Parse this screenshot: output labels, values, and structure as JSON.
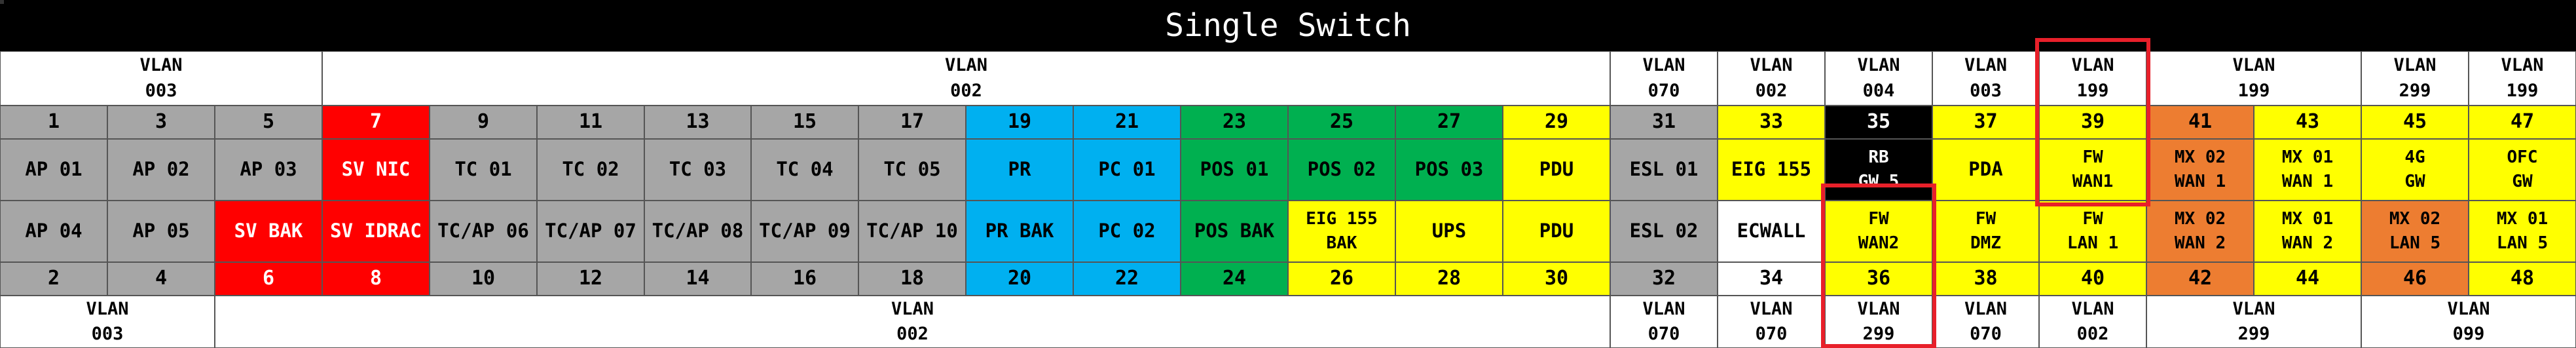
{
  "title": "Single Switch",
  "colors": {
    "grey": "#a6a6a6",
    "red": "#ff0000",
    "blue": "#00b0f0",
    "green": "#00b050",
    "yellow": "#ffff00",
    "orange": "#ed7d31",
    "black": "#000000",
    "white": "#ffffff",
    "highlight": "#e8202a"
  },
  "top_vlans": [
    {
      "text": "VLAN\n003",
      "span": 3
    },
    {
      "text": "VLAN\n002",
      "span": 12
    },
    {
      "text": "VLAN\n070",
      "span": 1
    },
    {
      "text": "VLAN\n002",
      "span": 1
    },
    {
      "text": "VLAN\n004",
      "span": 1
    },
    {
      "text": "VLAN\n003",
      "span": 1
    },
    {
      "text": "VLAN\n199",
      "span": 1
    },
    {
      "text": "VLAN\n199",
      "span": 2
    },
    {
      "text": "VLAN\n299",
      "span": 1
    },
    {
      "text": "VLAN\n199",
      "span": 1
    }
  ],
  "odd_ports": [
    {
      "num": "1",
      "color": "grey"
    },
    {
      "num": "3",
      "color": "grey"
    },
    {
      "num": "5",
      "color": "grey"
    },
    {
      "num": "7",
      "color": "red"
    },
    {
      "num": "9",
      "color": "grey"
    },
    {
      "num": "11",
      "color": "grey"
    },
    {
      "num": "13",
      "color": "grey"
    },
    {
      "num": "15",
      "color": "grey"
    },
    {
      "num": "17",
      "color": "grey"
    },
    {
      "num": "19",
      "color": "blue"
    },
    {
      "num": "21",
      "color": "blue"
    },
    {
      "num": "23",
      "color": "green"
    },
    {
      "num": "25",
      "color": "green"
    },
    {
      "num": "27",
      "color": "green"
    },
    {
      "num": "29",
      "color": "yellow"
    },
    {
      "num": "31",
      "color": "grey"
    },
    {
      "num": "33",
      "color": "yellow"
    },
    {
      "num": "35",
      "color": "black"
    },
    {
      "num": "37",
      "color": "yellow"
    },
    {
      "num": "39",
      "color": "yellow"
    },
    {
      "num": "41",
      "color": "orange"
    },
    {
      "num": "43",
      "color": "yellow"
    },
    {
      "num": "45",
      "color": "yellow"
    },
    {
      "num": "47",
      "color": "yellow"
    }
  ],
  "odd_labels": [
    {
      "text": "AP 01",
      "color": "grey"
    },
    {
      "text": "AP 02",
      "color": "grey"
    },
    {
      "text": "AP 03",
      "color": "grey"
    },
    {
      "text": "SV NIC",
      "color": "red"
    },
    {
      "text": "TC 01",
      "color": "grey"
    },
    {
      "text": "TC 02",
      "color": "grey"
    },
    {
      "text": "TC 03",
      "color": "grey"
    },
    {
      "text": "TC 04",
      "color": "grey"
    },
    {
      "text": "TC 05",
      "color": "grey"
    },
    {
      "text": "PR",
      "color": "blue"
    },
    {
      "text": "PC 01",
      "color": "blue"
    },
    {
      "text": "POS 01",
      "color": "green"
    },
    {
      "text": "POS 02",
      "color": "green"
    },
    {
      "text": "POS 03",
      "color": "green"
    },
    {
      "text": "PDU",
      "color": "yellow"
    },
    {
      "text": "ESL 01",
      "color": "grey"
    },
    {
      "text": "EIG 155",
      "color": "yellow"
    },
    {
      "text": "RB\nGW 5",
      "color": "black"
    },
    {
      "text": "PDA",
      "color": "yellow"
    },
    {
      "text": "FW\nWAN1",
      "color": "yellow"
    },
    {
      "text": "MX 02\nWAN 1",
      "color": "orange"
    },
    {
      "text": "MX 01\nWAN 1",
      "color": "yellow"
    },
    {
      "text": "4G\nGW",
      "color": "yellow"
    },
    {
      "text": "OFC\nGW",
      "color": "yellow"
    }
  ],
  "even_labels": [
    {
      "text": "AP 04",
      "color": "grey"
    },
    {
      "text": "AP 05",
      "color": "grey"
    },
    {
      "text": "SV BAK",
      "color": "red"
    },
    {
      "text": "SV IDRAC",
      "color": "red"
    },
    {
      "text": "TC/AP 06",
      "color": "grey"
    },
    {
      "text": "TC/AP 07",
      "color": "grey"
    },
    {
      "text": "TC/AP 08",
      "color": "grey"
    },
    {
      "text": "TC/AP 09",
      "color": "grey"
    },
    {
      "text": "TC/AP 10",
      "color": "grey"
    },
    {
      "text": "PR BAK",
      "color": "blue"
    },
    {
      "text": "PC 02",
      "color": "blue"
    },
    {
      "text": "POS BAK",
      "color": "green"
    },
    {
      "text": "EIG 155\nBAK",
      "color": "yellow"
    },
    {
      "text": "UPS",
      "color": "yellow"
    },
    {
      "text": "PDU",
      "color": "yellow"
    },
    {
      "text": "ESL 02",
      "color": "grey"
    },
    {
      "text": "ECWALL",
      "color": "white"
    },
    {
      "text": "FW\nWAN2",
      "color": "yellow"
    },
    {
      "text": "FW\nDMZ",
      "color": "yellow"
    },
    {
      "text": "FW\nLAN 1",
      "color": "yellow"
    },
    {
      "text": "MX 02\nWAN 2",
      "color": "orange"
    },
    {
      "text": "MX 01\nWAN 2",
      "color": "yellow"
    },
    {
      "text": "MX 02\nLAN 5",
      "color": "orange"
    },
    {
      "text": "MX 01\nLAN 5",
      "color": "yellow"
    }
  ],
  "even_ports": [
    {
      "num": "2",
      "color": "grey"
    },
    {
      "num": "4",
      "color": "grey"
    },
    {
      "num": "6",
      "color": "red"
    },
    {
      "num": "8",
      "color": "red"
    },
    {
      "num": "10",
      "color": "grey"
    },
    {
      "num": "12",
      "color": "grey"
    },
    {
      "num": "14",
      "color": "grey"
    },
    {
      "num": "16",
      "color": "grey"
    },
    {
      "num": "18",
      "color": "grey"
    },
    {
      "num": "20",
      "color": "blue"
    },
    {
      "num": "22",
      "color": "blue"
    },
    {
      "num": "24",
      "color": "green"
    },
    {
      "num": "26",
      "color": "yellow"
    },
    {
      "num": "28",
      "color": "yellow"
    },
    {
      "num": "30",
      "color": "yellow"
    },
    {
      "num": "32",
      "color": "grey"
    },
    {
      "num": "34",
      "color": "white"
    },
    {
      "num": "36",
      "color": "yellow"
    },
    {
      "num": "38",
      "color": "yellow"
    },
    {
      "num": "40",
      "color": "yellow"
    },
    {
      "num": "42",
      "color": "orange"
    },
    {
      "num": "44",
      "color": "yellow"
    },
    {
      "num": "46",
      "color": "orange"
    },
    {
      "num": "48",
      "color": "yellow"
    }
  ],
  "bottom_vlans": [
    {
      "text": "VLAN\n003",
      "span": 2
    },
    {
      "text": "VLAN\n002",
      "span": 13
    },
    {
      "text": "VLAN\n070",
      "span": 1
    },
    {
      "text": "VLAN\n070",
      "span": 1
    },
    {
      "text": "VLAN\n299",
      "span": 1
    },
    {
      "text": "VLAN\n070",
      "span": 1
    },
    {
      "text": "VLAN\n002",
      "span": 1
    },
    {
      "text": "VLAN\n299",
      "span": 2
    },
    {
      "text": "VLAN\n099",
      "span": 2
    }
  ],
  "highlights": [
    {
      "port": "39",
      "label": "FW WAN1"
    },
    {
      "port": "36",
      "label": "FW WAN2"
    }
  ]
}
